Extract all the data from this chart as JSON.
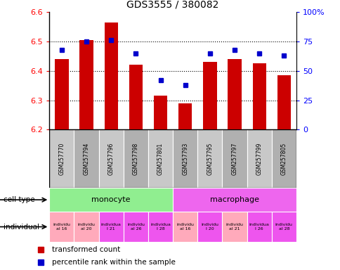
{
  "title": "GDS3555 / 380082",
  "samples": [
    "GSM257770",
    "GSM257794",
    "GSM257796",
    "GSM257798",
    "GSM257801",
    "GSM257793",
    "GSM257795",
    "GSM257797",
    "GSM257799",
    "GSM257805"
  ],
  "red_values": [
    6.44,
    6.505,
    6.565,
    6.42,
    6.315,
    6.29,
    6.43,
    6.44,
    6.425,
    6.385
  ],
  "blue_values": [
    68,
    75,
    76,
    65,
    42,
    38,
    65,
    68,
    65,
    63
  ],
  "ylim_left": [
    6.2,
    6.6
  ],
  "ylim_right": [
    0,
    100
  ],
  "yticks_left": [
    6.2,
    6.3,
    6.4,
    6.5,
    6.6
  ],
  "yticks_right": [
    0,
    25,
    50,
    75,
    100
  ],
  "cell_types": [
    {
      "label": "monocyte",
      "start": 0,
      "end": 5,
      "color": "#90ee90"
    },
    {
      "label": "macrophage",
      "start": 5,
      "end": 10,
      "color": "#ee66ee"
    }
  ],
  "ind_labels": [
    "individu\nal 16",
    "individu\nal 20",
    "individua\nl 21",
    "individu\nal 26",
    "individua\nl 28",
    "individu\nal 16",
    "individu\nl 20",
    "individu\nal 21",
    "individua\nl 26",
    "individu\nal 28"
  ],
  "ind_colors": [
    "#ffaabb",
    "#ffaabb",
    "#ee55ee",
    "#ee55ee",
    "#ee55ee",
    "#ffaabb",
    "#ee55ee",
    "#ffaabb",
    "#ee55ee",
    "#ee55ee"
  ],
  "bar_color": "#cc0000",
  "dot_color": "#0000cc",
  "bar_width": 0.55,
  "base_value": 6.2,
  "grid_lines": [
    6.3,
    6.4,
    6.5
  ],
  "label_left_cell_type": "cell type",
  "label_left_individual": "individual",
  "legend_red": "transformed count",
  "legend_blue": "percentile rank within the sample",
  "sample_box_colors": [
    "#c8c8c8",
    "#b0b0b0",
    "#c8c8c8",
    "#b0b0b0",
    "#c8c8c8",
    "#b0b0b0",
    "#c8c8c8",
    "#b0b0b0",
    "#c8c8c8",
    "#b0b0b0"
  ]
}
